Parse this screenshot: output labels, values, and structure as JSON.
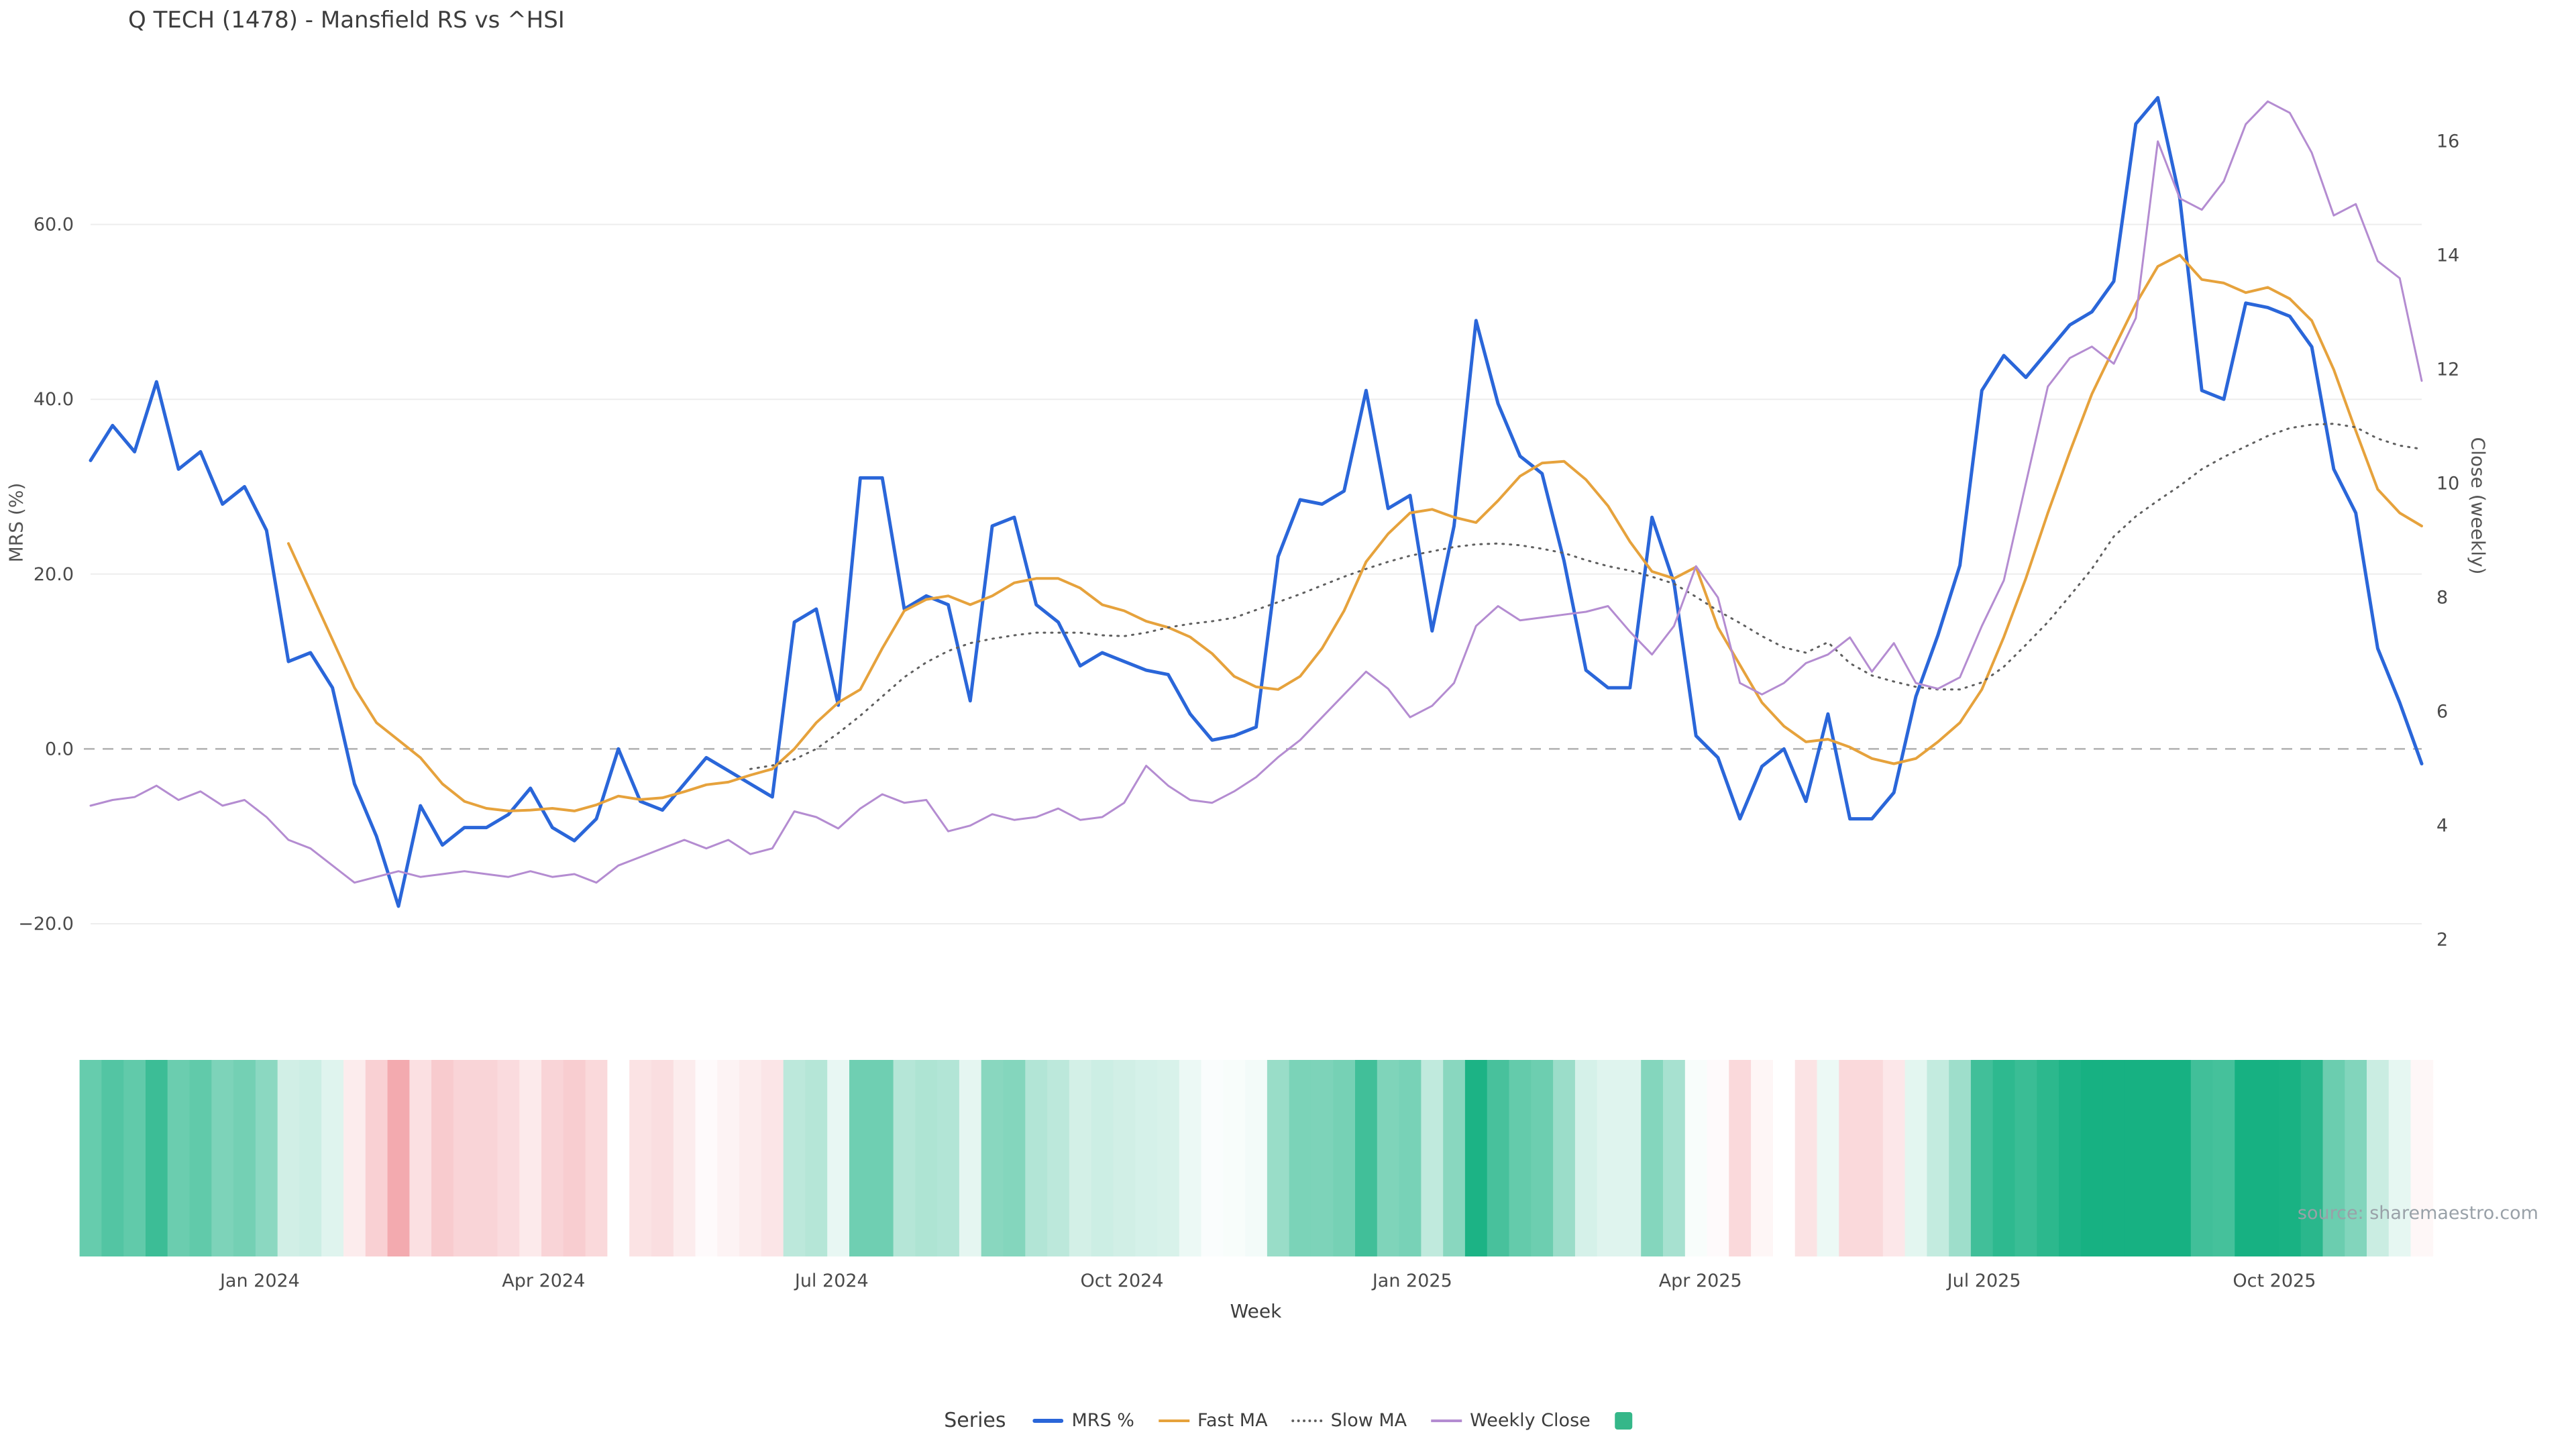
{
  "title": "Q TECH (1478) - Mansfield RS vs ^HSI",
  "source": "source: sharemaestro.com",
  "legend": {
    "title": "Series"
  },
  "chart_data": {
    "type": "line",
    "title": "Q TECH (1478) - Mansfield RS vs ^HSI",
    "xlabel": "Week",
    "ylabel_left": "MRS (%)",
    "ylabel_right": "Close (weekly)",
    "grid": "horizontal",
    "legend_position": "bottom-center",
    "ylim_left": [
      -24.3,
      75.7
    ],
    "ylim_right": [
      1.62,
      16.95
    ],
    "y_left_ticks": [
      60,
      40,
      20,
      0,
      -20
    ],
    "y_left_tick_labels": [
      "60.0",
      "40.0",
      "20.0",
      "0.0",
      "−20.0"
    ],
    "y_right_ticks": [
      16,
      14,
      12,
      10,
      8,
      6,
      4,
      2
    ],
    "x_ticks": [
      {
        "label": "Jan 2024",
        "index": 7.7
      },
      {
        "label": "Apr 2024",
        "index": 20.6
      },
      {
        "label": "Jul 2024",
        "index": 33.7
      },
      {
        "label": "Oct 2024",
        "index": 46.9
      },
      {
        "label": "Jan 2025",
        "index": 60.1
      },
      {
        "label": "Apr 2025",
        "index": 73.2
      },
      {
        "label": "Jul 2025",
        "index": 86.1
      },
      {
        "label": "Oct 2025",
        "index": 99.3
      }
    ],
    "zero_line": {
      "value": 0,
      "style": "dashed",
      "color": "#b0b0b0"
    },
    "series": [
      {
        "id": "mrs",
        "name": "MRS %",
        "axis": "left",
        "color": "#2a66d9",
        "style": "solid",
        "width": 5,
        "values": [
          33,
          37,
          34,
          42,
          32,
          34,
          28,
          30,
          25,
          10,
          11,
          7,
          -4,
          -10,
          -18,
          -6.5,
          -11,
          -9,
          -9,
          -7.5,
          -4.5,
          -9,
          -10.5,
          -8,
          0,
          -6,
          -7,
          -4,
          -1,
          -2.5,
          -4,
          -5.5,
          14.5,
          16,
          5,
          31,
          31,
          16,
          17.5,
          16.5,
          5.5,
          25.5,
          26.5,
          16.5,
          14.5,
          9.5,
          11,
          10,
          9,
          8.5,
          4,
          1,
          1.5,
          2.5,
          22,
          28.5,
          28,
          29.5,
          41,
          27.5,
          29,
          13.5,
          25.5,
          49,
          39.5,
          33.5,
          31.5,
          21.5,
          9,
          7,
          7,
          26.5,
          19,
          1.5,
          -1,
          -8,
          -2,
          0,
          -6,
          4,
          -8,
          -8,
          -5,
          6,
          13,
          21,
          41,
          45,
          42.5,
          45.5,
          48.5,
          50,
          53.5,
          71.5,
          74.5,
          63,
          41,
          40,
          51,
          50.5,
          49.5,
          46,
          32,
          27,
          11.5,
          5.3,
          -1.7
        ]
      },
      {
        "id": "fast-ma",
        "name": "Fast MA",
        "axis": "left",
        "color": "#e6a23c",
        "style": "solid",
        "width": 4,
        "values": [
          null,
          null,
          null,
          null,
          null,
          null,
          null,
          null,
          null,
          23.5,
          18,
          12.5,
          7,
          3,
          1,
          -1,
          -4,
          -6,
          -6.8,
          -7.1,
          -7,
          -6.8,
          -7.1,
          -6.4,
          -5.4,
          -5.8,
          -5.6,
          -4.9,
          -4.1,
          -3.8,
          -3,
          -2.3,
          0,
          3,
          5.3,
          6.8,
          11.5,
          15.8,
          17.1,
          17.5,
          16.5,
          17.5,
          19,
          19.5,
          19.5,
          18.4,
          16.5,
          15.8,
          14.6,
          13.9,
          12.8,
          10.9,
          8.3,
          7.1,
          6.8,
          8.3,
          11.5,
          15.8,
          21.4,
          24.6,
          27,
          27.4,
          26.5,
          25.9,
          28.4,
          31.2,
          32.7,
          32.9,
          30.8,
          27.8,
          23.7,
          20.3,
          19.5,
          20.8,
          13.9,
          9.6,
          5.3,
          2.6,
          0.8,
          1.1,
          0.2,
          -1.1,
          -1.7,
          -1.1,
          0.8,
          3,
          6.8,
          12.8,
          19.5,
          27,
          34,
          40.6,
          45.8,
          50.9,
          55.2,
          56.5,
          53.7,
          53.3,
          52.2,
          52.8,
          51.5,
          49,
          43.4,
          36.4,
          29.7,
          27,
          25.5
        ]
      },
      {
        "id": "slow-ma",
        "name": "Slow MA",
        "axis": "left",
        "color": "#5f5f5f",
        "style": "dotted",
        "width": 3,
        "values": [
          null,
          null,
          null,
          null,
          null,
          null,
          null,
          null,
          null,
          null,
          null,
          null,
          null,
          null,
          null,
          null,
          null,
          null,
          null,
          null,
          null,
          null,
          null,
          null,
          null,
          null,
          null,
          null,
          null,
          null,
          -2.3,
          -1.9,
          -1.2,
          0,
          1.8,
          3.8,
          6,
          8.2,
          9.9,
          11.2,
          12.1,
          12.6,
          13,
          13.3,
          13.3,
          13.3,
          13,
          12.9,
          13.3,
          13.9,
          14.3,
          14.6,
          15,
          15.9,
          16.8,
          17.7,
          18.7,
          19.7,
          20.6,
          21.4,
          22.1,
          22.6,
          23.1,
          23.4,
          23.5,
          23.3,
          22.9,
          22.4,
          21.6,
          20.9,
          20.4,
          19.7,
          18.9,
          17.4,
          15.8,
          14.4,
          12.9,
          11.6,
          11,
          12.2,
          9.8,
          8.4,
          7.7,
          7.1,
          6.8,
          6.8,
          7.6,
          9.4,
          11.9,
          14.5,
          17.5,
          20.6,
          24.3,
          26.6,
          28.4,
          30.1,
          32,
          33.4,
          34.6,
          35.8,
          36.7,
          37.1,
          37.2,
          36.8,
          35.5,
          34.7,
          34.3
        ]
      },
      {
        "id": "weekly-close",
        "name": "Weekly Close",
        "axis": "right",
        "color": "#b48cd1",
        "style": "solid",
        "width": 3,
        "values": [
          4.35,
          4.45,
          4.5,
          4.7,
          4.45,
          4.6,
          4.35,
          4.45,
          4.15,
          3.75,
          3.6,
          3.3,
          3.0,
          3.1,
          3.2,
          3.1,
          3.15,
          3.2,
          3.15,
          3.1,
          3.2,
          3.1,
          3.15,
          3.0,
          3.3,
          3.45,
          3.6,
          3.75,
          3.6,
          3.75,
          3.5,
          3.6,
          4.25,
          4.15,
          3.95,
          4.3,
          4.55,
          4.4,
          4.45,
          3.9,
          4.0,
          4.2,
          4.1,
          4.15,
          4.3,
          4.1,
          4.15,
          4.4,
          5.05,
          4.7,
          4.45,
          4.4,
          4.6,
          4.85,
          5.2,
          5.5,
          5.9,
          6.3,
          6.7,
          6.4,
          5.9,
          6.1,
          6.5,
          7.5,
          7.85,
          7.6,
          7.65,
          7.7,
          7.75,
          7.85,
          7.4,
          7.0,
          7.5,
          8.55,
          8.0,
          6.5,
          6.3,
          6.5,
          6.85,
          7.0,
          7.3,
          6.7,
          7.2,
          6.5,
          6.4,
          6.6,
          7.5,
          8.3,
          10.0,
          11.7,
          12.2,
          12.4,
          12.1,
          12.9,
          16.0,
          15.0,
          14.8,
          15.3,
          16.3,
          16.7,
          16.5,
          15.8,
          14.7,
          14.9,
          13.9,
          13.6,
          11.8
        ]
      }
    ],
    "heatmap": {
      "basis": "MRS %",
      "description": "weekly color strip: green = positive MRS, red = negative MRS",
      "positive_color": "#17b182",
      "negative_color": "#f2a0a6",
      "positive_saturation": 50,
      "negative_saturation": 20,
      "legend_swatch_color": "#35b789"
    }
  }
}
